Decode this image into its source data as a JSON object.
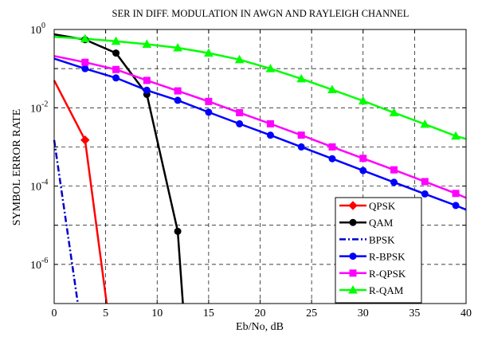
{
  "chart_data": {
    "type": "line",
    "title": "SER IN DIFF. MODULATION IN AWGN AND RAYLEIGH CHANNEL",
    "xlabel": "Eb/No, dB",
    "ylabel": "SYMBOL ERROR RATE",
    "xlim": [
      0,
      40
    ],
    "ylim": [
      1e-07,
      1
    ],
    "yscale": "log",
    "grid": true,
    "legend_position": "bottom-right",
    "x_ticks": [
      "0",
      "5",
      "10",
      "15",
      "20",
      "25",
      "30",
      "35",
      "40"
    ],
    "y_ticks": [
      {
        "base": "10",
        "exp": "0",
        "value": 1
      },
      {
        "base": "10",
        "exp": "-2",
        "value": 0.01
      },
      {
        "base": "10",
        "exp": "-4",
        "value": 0.0001
      },
      {
        "base": "10",
        "exp": "-6",
        "value": 1e-06
      }
    ],
    "series": [
      {
        "name": "QPSK",
        "color": "#ff0000",
        "marker": "diamond",
        "dash": "solid",
        "x": [
          0,
          3,
          5.1
        ],
        "y": [
          0.05,
          0.0015,
          1e-07
        ],
        "marker_x": [
          3
        ]
      },
      {
        "name": "QAM",
        "color": "#000000",
        "marker": "circle",
        "dash": "solid",
        "x": [
          0,
          3,
          6,
          9,
          12,
          12.5
        ],
        "y": [
          0.75,
          0.55,
          0.25,
          0.022,
          7e-06,
          1e-07
        ],
        "marker_x": [
          3,
          6,
          9,
          12
        ]
      },
      {
        "name": "BPSK",
        "color": "#0000cc",
        "marker": "none",
        "dash": "dashdot",
        "x": [
          0,
          2.3
        ],
        "y": [
          0.0015,
          1e-07
        ],
        "marker_x": []
      },
      {
        "name": "R-BPSK",
        "color": "#0000ff",
        "marker": "circle",
        "dash": "solid",
        "x": [
          0,
          3,
          6,
          9,
          12,
          15,
          18,
          21,
          24,
          27,
          30,
          33,
          36,
          39,
          40
        ],
        "y": [
          0.18,
          0.1,
          0.058,
          0.028,
          0.0155,
          0.0077,
          0.0039,
          0.002,
          0.001,
          0.0005,
          0.00025,
          0.000125,
          6.3e-05,
          3.2e-05,
          2.5e-05
        ],
        "marker_x": [
          3,
          6,
          9,
          12,
          15,
          18,
          21,
          24,
          27,
          30,
          33,
          36,
          39
        ]
      },
      {
        "name": "R-QPSK",
        "color": "#ff00ff",
        "marker": "square",
        "dash": "solid",
        "x": [
          0,
          3,
          6,
          9,
          12,
          15,
          18,
          21,
          24,
          27,
          30,
          33,
          36,
          39,
          40
        ],
        "y": [
          0.21,
          0.145,
          0.095,
          0.05,
          0.027,
          0.0145,
          0.0075,
          0.0039,
          0.002,
          0.001,
          0.00051,
          0.00026,
          0.00013,
          6.5e-05,
          5e-05
        ],
        "marker_x": [
          3,
          6,
          9,
          12,
          15,
          18,
          21,
          24,
          27,
          30,
          33,
          36,
          39
        ]
      },
      {
        "name": "R-QAM",
        "color": "#00ff00",
        "marker": "triangle",
        "dash": "solid",
        "x": [
          0,
          3,
          6,
          9,
          12,
          15,
          18,
          21,
          24,
          27,
          30,
          33,
          36,
          39,
          40
        ],
        "y": [
          0.65,
          0.58,
          0.5,
          0.42,
          0.34,
          0.25,
          0.17,
          0.1,
          0.055,
          0.029,
          0.015,
          0.0075,
          0.0038,
          0.0019,
          0.0016
        ],
        "marker_x": [
          3,
          6,
          9,
          12,
          15,
          18,
          21,
          24,
          27,
          30,
          33,
          36,
          39
        ]
      }
    ]
  }
}
